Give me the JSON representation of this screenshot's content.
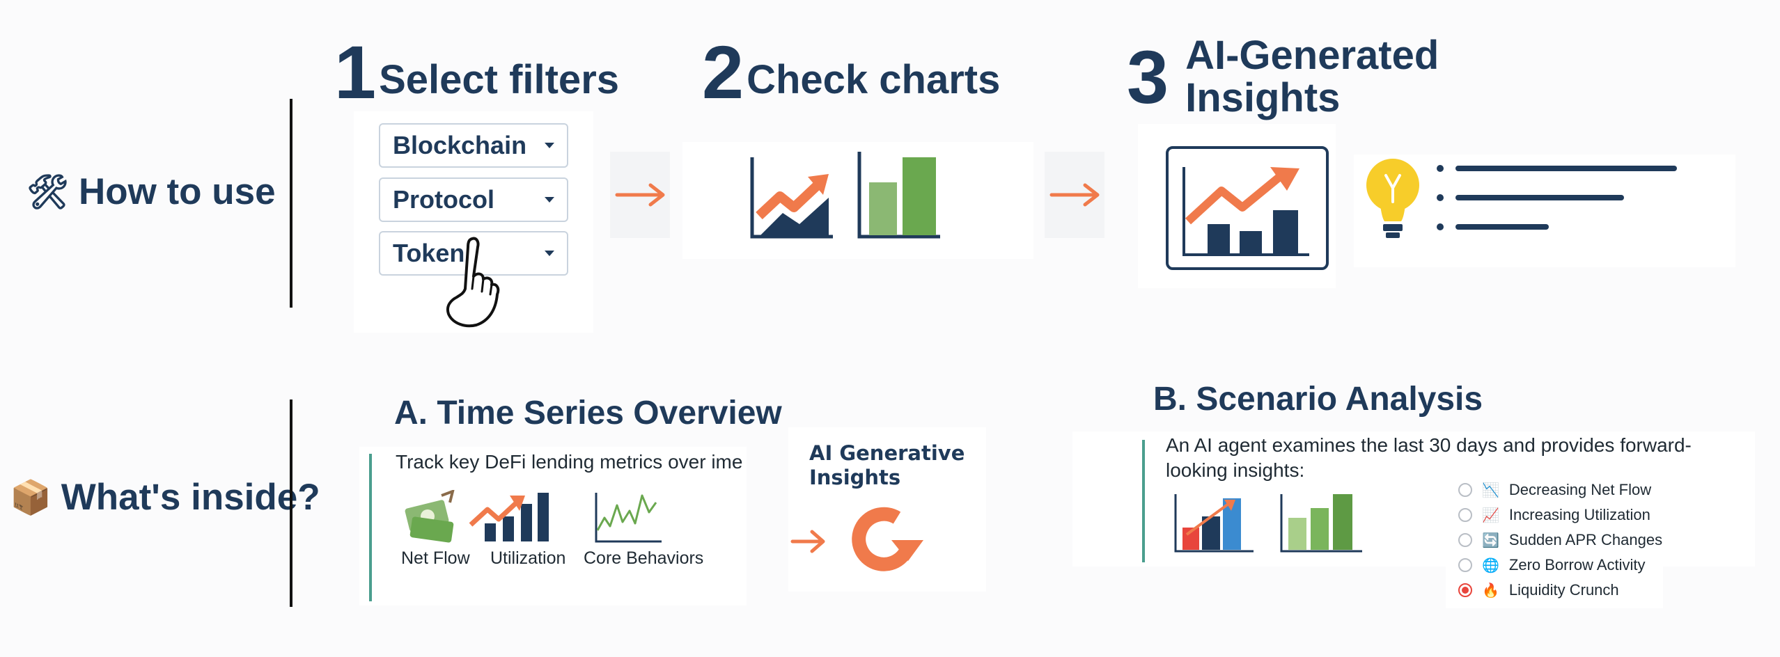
{
  "how_to_use": {
    "emoji": "🛠",
    "label": "How to use",
    "steps": [
      {
        "number": "1",
        "title": "Select filters"
      },
      {
        "number": "2",
        "title": "Check charts"
      },
      {
        "number": "3",
        "title_line1": "AI-Generated",
        "title_line2": "Insights"
      }
    ],
    "filters": [
      "Blockchain",
      "Protocol",
      "Token"
    ],
    "arrow": "→"
  },
  "whats_inside": {
    "emoji": "📦",
    "label": "What's inside?",
    "time_series": {
      "title": "A. Time Series Overview",
      "description": "Track key DeFi lending metrics over ime",
      "items": [
        "Net Flow",
        "Utilization",
        "Core Behaviors"
      ]
    },
    "ai_insights": {
      "line1": "AI Generative",
      "line2": "Insights"
    },
    "scenario": {
      "title": "B. Scenario Analysis",
      "description": "An AI agent examines the last 30 days and provides forward-looking insights:",
      "options": [
        {
          "emoji": "📉",
          "label": "Decreasing Net Flow",
          "selected": false
        },
        {
          "emoji": "📈",
          "label": "Increasing Utilization",
          "selected": false
        },
        {
          "emoji": "🔄",
          "label": "Sudden APR Changes",
          "selected": false
        },
        {
          "emoji": "🌐",
          "label": "Zero Borrow Activity",
          "selected": false
        },
        {
          "emoji": "🔥",
          "label": "Liquidity Crunch",
          "selected": true
        }
      ]
    }
  },
  "colors": {
    "navy": "#1f3a5a",
    "orange": "#f07a4b",
    "green": "#6aa84f",
    "teal": "#4a9e8e",
    "red": "#e8453c",
    "blue": "#3b8bd0"
  }
}
